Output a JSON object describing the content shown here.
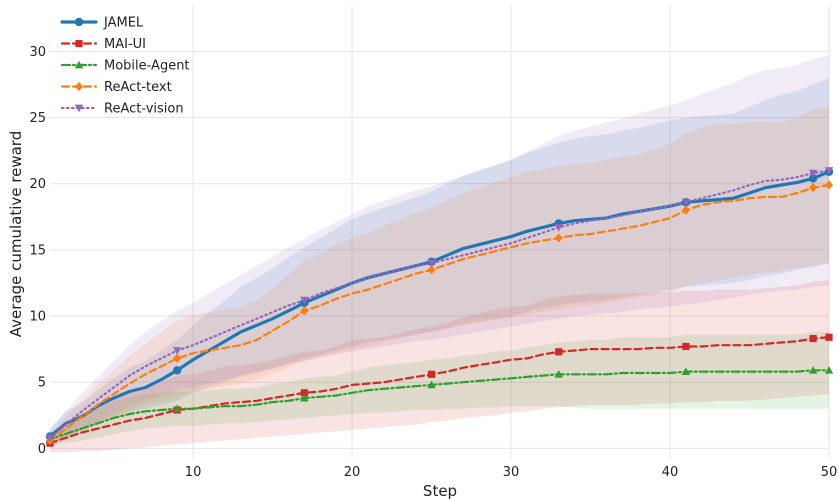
{
  "chart_data": {
    "type": "line",
    "xlabel": "Step",
    "ylabel": "Average cumulative reward",
    "xlim": [
      1,
      50
    ],
    "ylim": [
      -0.8,
      33.5
    ],
    "xticks": [
      10,
      20,
      30,
      40,
      50
    ],
    "yticks": [
      0,
      5,
      10,
      15,
      20,
      25,
      30
    ],
    "grid": true,
    "legend_position": "top-left",
    "series": [
      {
        "name": "JAMEL",
        "color": "#1f77b4",
        "linestyle": "solid",
        "marker": "circle",
        "x": [
          1,
          2,
          3,
          4,
          5,
          6,
          7,
          8,
          9,
          10,
          11,
          12,
          13,
          14,
          15,
          16,
          17,
          18,
          19,
          20,
          21,
          22,
          23,
          24,
          25,
          26,
          27,
          28,
          29,
          30,
          31,
          32,
          33,
          34,
          35,
          36,
          37,
          38,
          39,
          40,
          41,
          42,
          43,
          44,
          45,
          46,
          47,
          48,
          49,
          50
        ],
        "y": [
          0.9,
          1.9,
          2.4,
          3.2,
          3.8,
          4.3,
          4.6,
          5.2,
          5.9,
          6.7,
          7.4,
          8.1,
          8.8,
          9.3,
          9.8,
          10.4,
          11.0,
          11.5,
          12.0,
          12.5,
          12.9,
          13.2,
          13.5,
          13.8,
          14.1,
          14.6,
          15.1,
          15.4,
          15.7,
          16.0,
          16.4,
          16.7,
          17.0,
          17.2,
          17.3,
          17.4,
          17.7,
          17.9,
          18.1,
          18.3,
          18.6,
          18.7,
          18.8,
          18.9,
          19.3,
          19.7,
          19.9,
          20.1,
          20.4,
          20.9
        ],
        "band_lower": [
          0.3,
          1.0,
          1.5,
          2.0,
          2.4,
          2.8,
          3.0,
          3.3,
          3.6,
          4.2,
          4.6,
          5.0,
          5.4,
          5.7,
          6.0,
          6.4,
          6.8,
          7.1,
          7.4,
          7.7,
          8.0,
          8.2,
          8.4,
          8.6,
          8.8,
          9.1,
          9.4,
          9.6,
          9.8,
          10.0,
          10.3,
          10.6,
          10.8,
          11.0,
          11.1,
          11.2,
          11.4,
          11.6,
          11.8,
          12.0,
          12.2,
          12.3,
          12.4,
          12.5,
          12.7,
          13.0,
          13.2,
          13.5,
          13.7,
          14.0
        ],
        "band_upper": [
          1.5,
          2.8,
          3.4,
          4.4,
          5.3,
          6.1,
          6.6,
          7.4,
          8.2,
          9.3,
          10.3,
          11.2,
          12.2,
          12.9,
          13.6,
          14.4,
          15.2,
          15.9,
          16.6,
          17.3,
          17.8,
          18.2,
          18.6,
          19.0,
          19.4,
          20.0,
          20.6,
          21.0,
          21.4,
          21.8,
          22.3,
          22.7,
          23.1,
          23.4,
          23.6,
          23.7,
          24.0,
          24.2,
          24.5,
          24.8,
          25.0,
          25.1,
          25.2,
          25.3,
          25.8,
          26.3,
          26.7,
          27.0,
          27.5,
          28.0
        ],
        "marker_every": 8
      },
      {
        "name": "MAI-UI",
        "color": "#d62728",
        "linestyle": "dashed",
        "marker": "square",
        "x": [
          1,
          2,
          3,
          4,
          5,
          6,
          7,
          8,
          9,
          10,
          11,
          12,
          13,
          14,
          15,
          16,
          17,
          18,
          19,
          20,
          21,
          22,
          23,
          24,
          25,
          26,
          27,
          28,
          29,
          30,
          31,
          32,
          33,
          34,
          35,
          36,
          37,
          38,
          39,
          40,
          41,
          42,
          43,
          44,
          45,
          46,
          47,
          48,
          49,
          50
        ],
        "y": [
          0.4,
          0.8,
          1.2,
          1.5,
          1.8,
          2.1,
          2.3,
          2.6,
          2.9,
          3.0,
          3.2,
          3.4,
          3.5,
          3.6,
          3.8,
          4.0,
          4.2,
          4.3,
          4.5,
          4.8,
          4.9,
          5.0,
          5.2,
          5.4,
          5.6,
          5.8,
          6.1,
          6.3,
          6.5,
          6.7,
          6.8,
          7.1,
          7.3,
          7.4,
          7.5,
          7.5,
          7.5,
          7.5,
          7.6,
          7.6,
          7.7,
          7.7,
          7.8,
          7.8,
          7.8,
          7.9,
          8.0,
          8.1,
          8.3,
          8.4
        ],
        "band_lower": [
          -0.3,
          -0.3,
          -0.2,
          -0.2,
          -0.1,
          0.0,
          0.1,
          0.2,
          0.3,
          0.4,
          0.5,
          0.6,
          0.7,
          0.8,
          0.9,
          1.0,
          1.1,
          1.2,
          1.3,
          1.4,
          1.5,
          1.6,
          1.7,
          1.8,
          2.0,
          2.1,
          2.3,
          2.4,
          2.5,
          2.7,
          2.8,
          3.0,
          3.1,
          3.2,
          3.3,
          3.3,
          3.3,
          3.3,
          3.4,
          3.4,
          3.5,
          3.5,
          3.6,
          3.6,
          3.6,
          3.7,
          3.8,
          3.9,
          4.0,
          4.1
        ],
        "band_upper": [
          1.1,
          1.9,
          2.6,
          3.2,
          3.7,
          4.2,
          4.5,
          5.0,
          5.5,
          5.6,
          5.9,
          6.2,
          6.3,
          6.4,
          6.7,
          7.0,
          7.3,
          7.4,
          7.7,
          8.2,
          8.3,
          8.4,
          8.7,
          9.0,
          9.2,
          9.5,
          9.9,
          10.2,
          10.5,
          10.7,
          10.8,
          11.2,
          11.5,
          11.6,
          11.7,
          11.7,
          11.7,
          11.7,
          11.8,
          11.8,
          11.9,
          11.9,
          12.0,
          12.0,
          12.0,
          12.1,
          12.2,
          12.3,
          12.6,
          12.7
        ],
        "marker_every": 8
      },
      {
        "name": "Mobile-Agent",
        "color": "#2ca02c",
        "linestyle": "dashdot",
        "marker": "triangle-up",
        "x": [
          1,
          2,
          3,
          4,
          5,
          6,
          7,
          8,
          9,
          10,
          11,
          12,
          13,
          14,
          15,
          16,
          17,
          18,
          19,
          20,
          21,
          22,
          23,
          24,
          25,
          26,
          27,
          28,
          29,
          30,
          31,
          32,
          33,
          34,
          35,
          36,
          37,
          38,
          39,
          40,
          41,
          42,
          43,
          44,
          45,
          46,
          47,
          48,
          49,
          50
        ],
        "y": [
          0.7,
          1.1,
          1.5,
          1.9,
          2.3,
          2.6,
          2.8,
          2.9,
          3.0,
          3.0,
          3.1,
          3.2,
          3.2,
          3.3,
          3.5,
          3.6,
          3.8,
          3.9,
          4.0,
          4.2,
          4.4,
          4.5,
          4.6,
          4.7,
          4.8,
          4.9,
          5.0,
          5.1,
          5.2,
          5.3,
          5.4,
          5.5,
          5.6,
          5.6,
          5.6,
          5.6,
          5.7,
          5.7,
          5.7,
          5.7,
          5.8,
          5.8,
          5.8,
          5.8,
          5.8,
          5.8,
          5.8,
          5.8,
          5.9,
          5.9
        ],
        "band_lower": [
          0.2,
          0.4,
          0.6,
          0.8,
          1.1,
          1.3,
          1.5,
          1.6,
          1.7,
          1.7,
          1.8,
          1.9,
          1.9,
          2.0,
          2.1,
          2.2,
          2.3,
          2.4,
          2.5,
          2.6,
          2.7,
          2.7,
          2.8,
          2.9,
          2.9,
          3.0,
          3.0,
          3.1,
          3.1,
          3.2,
          3.2,
          3.2,
          3.2,
          3.1,
          3.0,
          3.0,
          3.0,
          3.0,
          3.0,
          3.0,
          3.0,
          3.0,
          3.0,
          3.0,
          3.0,
          3.0,
          3.0,
          3.0,
          3.0,
          3.0
        ],
        "band_upper": [
          1.2,
          1.8,
          2.4,
          3.0,
          3.5,
          3.9,
          4.1,
          4.2,
          4.3,
          4.3,
          4.4,
          4.5,
          4.5,
          4.6,
          4.9,
          5.0,
          5.3,
          5.4,
          5.5,
          5.8,
          6.1,
          6.3,
          6.4,
          6.5,
          6.7,
          6.8,
          7.0,
          7.1,
          7.3,
          7.4,
          7.6,
          7.8,
          8.0,
          8.1,
          8.2,
          8.2,
          8.4,
          8.4,
          8.4,
          8.4,
          8.6,
          8.6,
          8.6,
          8.6,
          8.6,
          8.6,
          8.6,
          8.6,
          8.8,
          8.8
        ],
        "marker_every": 8
      },
      {
        "name": "ReAct-text",
        "color": "#ff7f0e",
        "linestyle": "dashed",
        "marker": "diamond",
        "x": [
          1,
          2,
          3,
          4,
          5,
          6,
          7,
          8,
          9,
          10,
          11,
          12,
          13,
          14,
          15,
          16,
          17,
          18,
          19,
          20,
          21,
          22,
          23,
          24,
          25,
          26,
          27,
          28,
          29,
          30,
          31,
          32,
          33,
          34,
          35,
          36,
          37,
          38,
          39,
          40,
          41,
          42,
          43,
          44,
          45,
          46,
          47,
          48,
          49,
          50
        ],
        "y": [
          0.6,
          1.5,
          2.4,
          3.3,
          4.1,
          4.9,
          5.6,
          6.2,
          6.8,
          7.2,
          7.4,
          7.6,
          7.8,
          8.2,
          8.9,
          9.6,
          10.4,
          10.8,
          11.3,
          11.7,
          12.0,
          12.4,
          12.8,
          13.2,
          13.5,
          13.9,
          14.3,
          14.6,
          14.9,
          15.2,
          15.5,
          15.7,
          15.9,
          16.1,
          16.2,
          16.4,
          16.6,
          16.8,
          17.1,
          17.4,
          18.0,
          18.4,
          18.6,
          18.7,
          18.9,
          19.0,
          19.0,
          19.3,
          19.7,
          19.9
        ],
        "band_lower": [
          0.1,
          0.6,
          1.2,
          1.8,
          2.3,
          2.8,
          3.3,
          3.6,
          4.0,
          4.3,
          4.5,
          4.7,
          4.9,
          5.2,
          5.7,
          6.1,
          6.6,
          6.9,
          7.2,
          7.5,
          7.7,
          8.0,
          8.3,
          8.6,
          8.8,
          9.0,
          9.3,
          9.5,
          9.7,
          9.9,
          10.1,
          10.3,
          10.5,
          10.7,
          10.8,
          11.0,
          11.2,
          11.4,
          11.6,
          11.8,
          12.2,
          12.5,
          12.7,
          12.9,
          13.1,
          13.3,
          13.4,
          13.6,
          13.8,
          14.0
        ],
        "band_upper": [
          1.1,
          2.4,
          3.6,
          4.8,
          5.9,
          7.0,
          7.9,
          8.8,
          9.6,
          10.1,
          10.3,
          10.5,
          10.7,
          11.2,
          12.1,
          13.1,
          14.2,
          14.7,
          15.4,
          15.9,
          16.3,
          16.8,
          17.3,
          17.8,
          18.2,
          18.8,
          19.3,
          19.7,
          20.1,
          20.5,
          20.9,
          21.1,
          21.3,
          21.5,
          21.6,
          21.8,
          22.0,
          22.2,
          22.6,
          23.0,
          23.8,
          24.3,
          24.5,
          24.5,
          24.7,
          24.7,
          24.6,
          25.0,
          25.6,
          25.8
        ],
        "marker_every": 8
      },
      {
        "name": "ReAct-vision",
        "color": "#9467bd",
        "linestyle": "dotted",
        "marker": "triangle-down",
        "x": [
          1,
          2,
          3,
          4,
          5,
          6,
          7,
          8,
          9,
          10,
          11,
          12,
          13,
          14,
          15,
          16,
          17,
          18,
          19,
          20,
          21,
          22,
          23,
          24,
          25,
          26,
          27,
          28,
          29,
          30,
          31,
          32,
          33,
          34,
          35,
          36,
          37,
          38,
          39,
          40,
          41,
          42,
          43,
          44,
          45,
          46,
          47,
          48,
          49,
          50
        ],
        "y": [
          0.8,
          1.8,
          2.8,
          3.7,
          4.6,
          5.5,
          6.2,
          6.8,
          7.4,
          7.8,
          8.3,
          8.8,
          9.3,
          9.8,
          10.3,
          10.8,
          11.2,
          11.7,
          12.1,
          12.5,
          12.9,
          13.2,
          13.5,
          13.8,
          14.0,
          14.3,
          14.6,
          14.9,
          15.2,
          15.5,
          15.9,
          16.3,
          16.7,
          17.0,
          17.2,
          17.4,
          17.6,
          17.9,
          18.1,
          18.3,
          18.6,
          18.9,
          19.2,
          19.5,
          19.9,
          20.2,
          20.3,
          20.5,
          20.8,
          21.0
        ],
        "band_lower": [
          0.2,
          0.8,
          1.4,
          2.0,
          2.6,
          3.2,
          3.6,
          4.0,
          4.4,
          4.6,
          4.9,
          5.2,
          5.5,
          5.8,
          6.1,
          6.4,
          6.6,
          6.9,
          7.1,
          7.3,
          7.5,
          7.7,
          7.9,
          8.1,
          8.2,
          8.4,
          8.6,
          8.8,
          9.0,
          9.2,
          9.4,
          9.6,
          9.8,
          10.0,
          10.1,
          10.2,
          10.3,
          10.5,
          10.6,
          10.7,
          10.9,
          11.0,
          11.2,
          11.4,
          11.6,
          11.8,
          11.9,
          12.0,
          12.2,
          12.3
        ],
        "band_upper": [
          1.4,
          2.8,
          4.2,
          5.4,
          6.6,
          7.8,
          8.8,
          9.6,
          10.4,
          11.0,
          11.7,
          12.4,
          13.1,
          13.8,
          14.5,
          15.2,
          15.8,
          16.5,
          17.1,
          17.7,
          18.3,
          18.7,
          19.1,
          19.5,
          19.8,
          20.2,
          20.6,
          21.0,
          21.4,
          21.8,
          22.4,
          23.0,
          23.6,
          24.0,
          24.3,
          24.6,
          24.9,
          25.3,
          25.6,
          25.9,
          26.3,
          26.8,
          27.2,
          27.6,
          28.2,
          28.6,
          28.7,
          29.0,
          29.4,
          29.7
        ],
        "marker_every": 8
      }
    ]
  }
}
